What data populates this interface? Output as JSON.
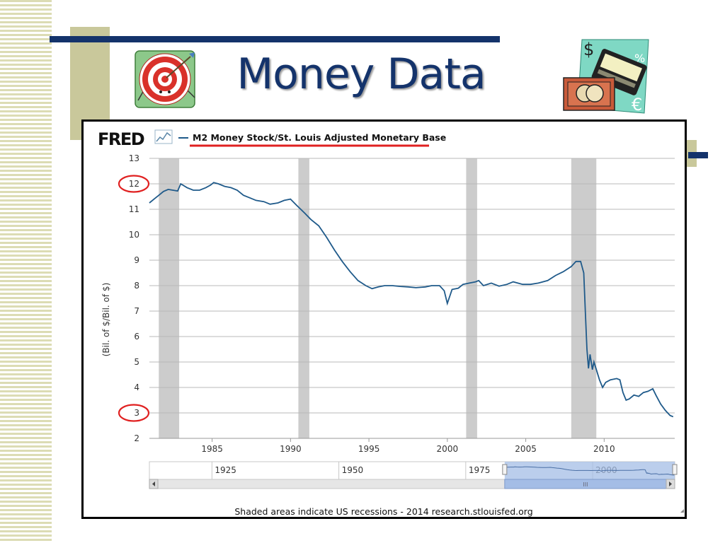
{
  "slide": {
    "title": "Money Data",
    "colors": {
      "title": "#14336b",
      "stripe": "#dcdcb4",
      "olive": "#c9c89b"
    },
    "icons": [
      "target-clipart",
      "money-clipart"
    ]
  },
  "fred": {
    "logo": "FRED",
    "footer": "Shaded areas indicate US recessions - 2014 research.stlouisfed.org"
  },
  "chart_data": {
    "type": "line",
    "title": "",
    "series": [
      {
        "name": "M2 Money Stock/St. Louis Adjusted Monetary Base",
        "color": "#1f5a8a",
        "x": [
          1981.0,
          1981.3,
          1981.6,
          1981.9,
          1982.2,
          1982.5,
          1982.8,
          1983.0,
          1983.4,
          1983.8,
          1984.2,
          1984.6,
          1984.9,
          1985.1,
          1985.4,
          1985.8,
          1986.2,
          1986.6,
          1987.0,
          1987.4,
          1987.8,
          1988.3,
          1988.7,
          1989.2,
          1989.6,
          1990.0,
          1990.4,
          1990.9,
          1991.3,
          1991.8,
          1992.3,
          1992.8,
          1993.3,
          1993.8,
          1994.3,
          1994.8,
          1995.2,
          1995.6,
          1996.0,
          1996.5,
          1997.0,
          1997.5,
          1998.0,
          1998.6,
          1999.0,
          1999.5,
          1999.8,
          2000.0,
          2000.3,
          2000.7,
          2001.0,
          2001.4,
          2001.8,
          2002.0,
          2002.3,
          2002.8,
          2003.3,
          2003.8,
          2004.2,
          2004.8,
          2005.3,
          2005.8,
          2006.4,
          2006.9,
          2007.4,
          2007.9,
          2008.2,
          2008.5,
          2008.7,
          2008.8,
          2008.9,
          2009.0,
          2009.1,
          2009.25,
          2009.35,
          2009.5,
          2009.7,
          2009.9,
          2010.1,
          2010.4,
          2010.8,
          2011.0,
          2011.2,
          2011.4,
          2011.6,
          2011.9,
          2012.2,
          2012.5,
          2012.8,
          2013.1,
          2013.3,
          2013.6,
          2013.9,
          2014.2,
          2014.4
        ],
        "y": [
          11.25,
          11.4,
          11.55,
          11.7,
          11.78,
          11.75,
          11.72,
          12.0,
          11.85,
          11.75,
          11.75,
          11.85,
          11.95,
          12.05,
          12.0,
          11.9,
          11.85,
          11.75,
          11.55,
          11.45,
          11.35,
          11.3,
          11.2,
          11.25,
          11.35,
          11.4,
          11.15,
          10.85,
          10.6,
          10.35,
          9.9,
          9.4,
          8.95,
          8.55,
          8.2,
          8.0,
          7.88,
          7.95,
          8.0,
          8.0,
          7.97,
          7.95,
          7.92,
          7.95,
          8.0,
          8.0,
          7.8,
          7.3,
          7.85,
          7.9,
          8.05,
          8.1,
          8.15,
          8.2,
          8.0,
          8.1,
          7.98,
          8.05,
          8.15,
          8.05,
          8.05,
          8.1,
          8.2,
          8.4,
          8.55,
          8.75,
          8.95,
          8.95,
          8.5,
          7.0,
          5.5,
          4.75,
          5.3,
          4.7,
          5.0,
          4.7,
          4.3,
          4.0,
          4.2,
          4.3,
          4.35,
          4.3,
          3.8,
          3.5,
          3.55,
          3.7,
          3.65,
          3.8,
          3.85,
          3.95,
          3.7,
          3.35,
          3.1,
          2.9,
          2.85
        ]
      }
    ],
    "x_ticks": [
      1985,
      1990,
      1995,
      2000,
      2005,
      2010
    ],
    "y_ticks": [
      2,
      3,
      4,
      5,
      6,
      7,
      8,
      9,
      10,
      11,
      12,
      13
    ],
    "xlim": [
      1981.0,
      2014.5
    ],
    "ylim": [
      2,
      13
    ],
    "xlabel": "",
    "ylabel": "(Bil. of $/Bil. of $)",
    "grid": "horizontal",
    "recessions": [
      [
        1981.6,
        1982.9
      ],
      [
        1990.5,
        1991.2
      ],
      [
        2001.2,
        2001.9
      ],
      [
        2007.9,
        2009.5
      ]
    ],
    "highlighted_ticks": [
      12,
      3
    ],
    "navigator": {
      "labels": [
        "1925",
        "1950",
        "1975",
        "2000"
      ],
      "label_years": [
        1925,
        1950,
        1975,
        2000
      ],
      "range": [
        1911,
        2014.5
      ],
      "selected": [
        1981.0,
        2014.5
      ]
    }
  }
}
